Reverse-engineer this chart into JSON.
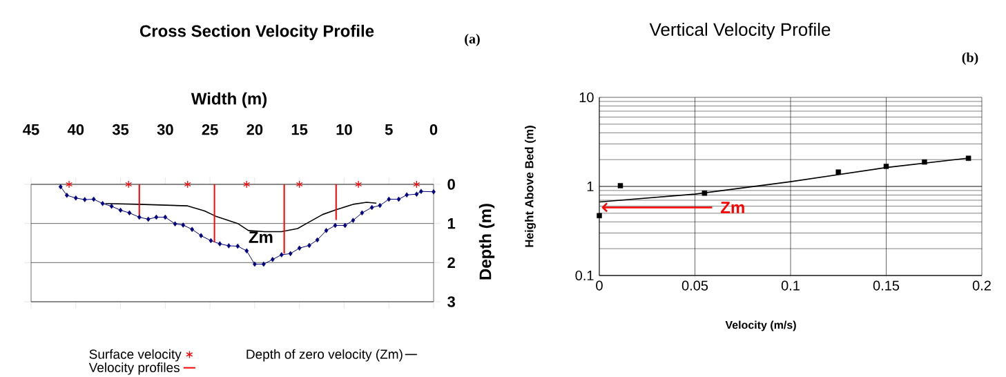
{
  "chart_data": [
    {
      "type": "line",
      "title": "Cross Section Velocity Profile",
      "xlabel": "Width (m)",
      "ylabel": "Depth (m)",
      "annotations": [
        "(a)",
        "Zm"
      ],
      "xlim": [
        45,
        0
      ],
      "xticks": [
        45,
        40,
        35,
        30,
        25,
        20,
        15,
        10,
        5,
        0
      ],
      "ylim": [
        3,
        0
      ],
      "yticks": [
        0,
        1,
        2,
        3
      ],
      "grid": "y",
      "legend": "bottom",
      "series": [
        {
          "color": "#000080",
          "marker": "diamond",
          "x": [
            41.7,
            41,
            40,
            39,
            38,
            37,
            36,
            35,
            34,
            32.9,
            31.9,
            31,
            30,
            28.9,
            28,
            27,
            26,
            24.9,
            23.9,
            22.9,
            21.9,
            20.9,
            20,
            19,
            18,
            17,
            16,
            15,
            13.9,
            13,
            12,
            11,
            9.9,
            9,
            8,
            6.9,
            6,
            5,
            3.9,
            3,
            1.9,
            1.4,
            0
          ],
          "values": [
            0.06,
            0.28,
            0.35,
            0.39,
            0.38,
            0.49,
            0.56,
            0.66,
            0.73,
            0.84,
            0.89,
            0.84,
            0.84,
            1.01,
            1.04,
            1.15,
            1.31,
            1.44,
            1.52,
            1.57,
            1.58,
            1.7,
            2.04,
            2.04,
            1.92,
            1.8,
            1.77,
            1.63,
            1.56,
            1.42,
            1.18,
            1.05,
            1.05,
            0.92,
            0.73,
            0.59,
            0.54,
            0.38,
            0.38,
            0.27,
            0.25,
            0.18,
            0.19
          ]
        },
        {
          "type": "scatter",
          "name": "Surface velocity",
          "color": "#ff0000",
          "marker": "cross",
          "x": [
            40.75,
            34.1,
            27.5,
            20.9,
            15,
            8.4,
            1.9
          ],
          "values": [
            0,
            0,
            0,
            0,
            0,
            0,
            0
          ]
        },
        {
          "name": "Depth of zero velocity (Zm)",
          "color": "#000000",
          "marker": "none",
          "x": [
            36.7,
            33,
            27.5,
            25.6,
            24.4,
            21.9,
            20.7,
            18.9,
            17,
            15.2,
            14.2,
            12.4,
            10.9,
            9,
            7.5,
            6.4
          ],
          "values": [
            0.49,
            0.51,
            0.55,
            0.68,
            0.81,
            1.0,
            1.18,
            1.21,
            1.21,
            1.13,
            1.0,
            0.77,
            0.65,
            0.51,
            0.46,
            0.48
          ]
        },
        {
          "name": "Velocity profiles",
          "color": "#ff0000",
          "marker": "none",
          "x": [
            32.9,
            32.9
          ],
          "values": [
            0,
            0.79
          ]
        },
        {
          "color": "#ff0000",
          "marker": "none",
          "x": [
            24.5,
            24.5
          ],
          "values": [
            0,
            1.48
          ]
        },
        {
          "color": "#ff0000",
          "marker": "none",
          "x": [
            16.7,
            16.7
          ],
          "values": [
            0,
            1.77
          ]
        },
        {
          "color": "#ff0000",
          "marker": "none",
          "x": [
            10.9,
            10.9
          ],
          "values": [
            0,
            0.91
          ]
        }
      ]
    },
    {
      "type": "scatter",
      "title": "Vertical Velocity Profile",
      "xlabel": "Velocity (m/s)",
      "ylabel": "Height Above Bed (m)",
      "annotations": [
        "(b)",
        "Zm"
      ],
      "xlim": [
        0,
        0.2
      ],
      "xticks": [
        0,
        0.05,
        0.1,
        0.15,
        0.2
      ],
      "ylim": [
        0.1,
        10
      ],
      "yticks": [
        0.1,
        1,
        10
      ],
      "log": "y",
      "grid": true,
      "series": [
        {
          "color": "#000000",
          "marker": "square",
          "x": [
            0,
            0.011,
            0.055,
            0.125,
            0.15,
            0.17,
            0.193
          ],
          "values": [
            0.47,
            1.02,
            0.84,
            1.45,
            1.68,
            1.88,
            2.07
          ]
        },
        {
          "type": "line",
          "color": "#000000",
          "marker": "none",
          "x": [
            0,
            0.05,
            0.1,
            0.15,
            0.193
          ],
          "values": [
            0.67,
            0.82,
            1.13,
            1.63,
            2.08
          ]
        }
      ]
    }
  ]
}
